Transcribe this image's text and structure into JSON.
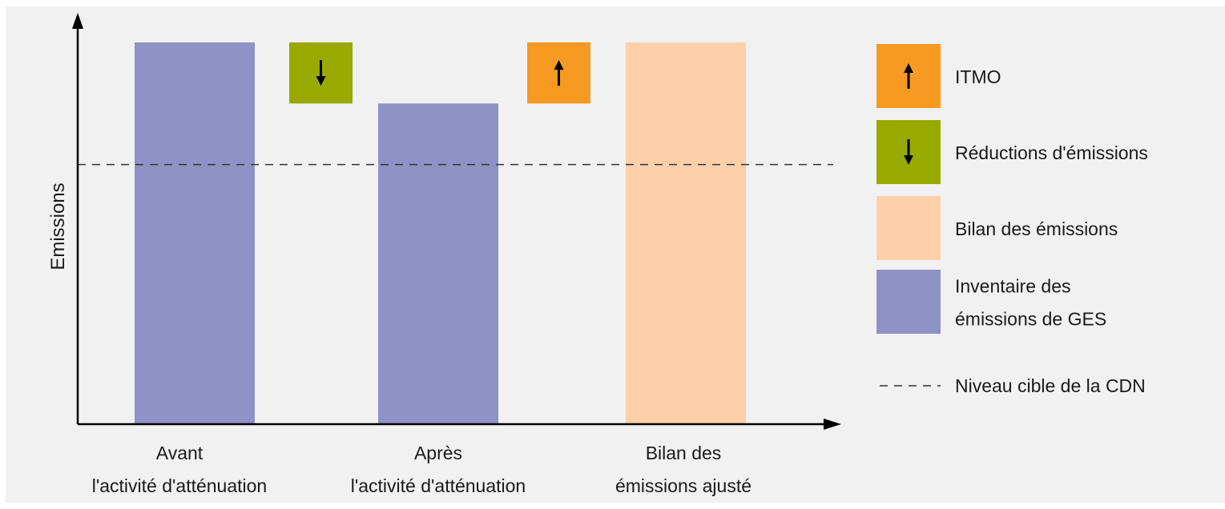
{
  "chart_data": {
    "type": "bar",
    "title": "",
    "ylabel": "Emissions",
    "xlabel": "",
    "ylim": [
      0,
      100
    ],
    "grid": false,
    "legend_placement": "right",
    "categories": [
      [
        "Avant",
        "l'activité d'atténuation"
      ],
      [
        "Après",
        "l'activité d'atténuation"
      ],
      [
        "Bilan des",
        "émissions ajusté"
      ]
    ],
    "bars": [
      {
        "category_index": 0,
        "value": 100,
        "series": "inventory"
      },
      {
        "category_index": 1,
        "value": 84,
        "series": "inventory"
      },
      {
        "category_index": 2,
        "value": 100,
        "series": "balance"
      }
    ],
    "adjustments": [
      {
        "between": [
          0,
          1
        ],
        "from": 84,
        "to": 100,
        "series": "reduction",
        "arrow": "down"
      },
      {
        "between": [
          1,
          2
        ],
        "from": 84,
        "to": 100,
        "series": "itmo",
        "arrow": "up"
      }
    ],
    "target_level": 68,
    "legend": [
      {
        "key": "itmo",
        "label_lines": [
          "ITMO"
        ],
        "swatch": "box",
        "arrow": "up"
      },
      {
        "key": "reduction",
        "label_lines": [
          "Réductions d'émissions"
        ],
        "swatch": "box",
        "arrow": "down"
      },
      {
        "key": "balance",
        "label_lines": [
          "Bilan des émissions"
        ],
        "swatch": "box",
        "arrow": null
      },
      {
        "key": "inventory",
        "label_lines": [
          "Inventaire des",
          "émissions de GES"
        ],
        "swatch": "box",
        "arrow": null
      },
      {
        "key": "target",
        "label_lines": [
          "Niveau cible de la CDN"
        ],
        "swatch": "dashed-line",
        "arrow": null
      }
    ],
    "colors": {
      "background": "#f1f1f1",
      "inventory": "#8f92c6",
      "balance": "#fdd0aa",
      "itmo": "#f69a22",
      "reduction": "#98aa00",
      "axis": "#000000",
      "target": "#333333",
      "arrow": "#000000"
    }
  }
}
